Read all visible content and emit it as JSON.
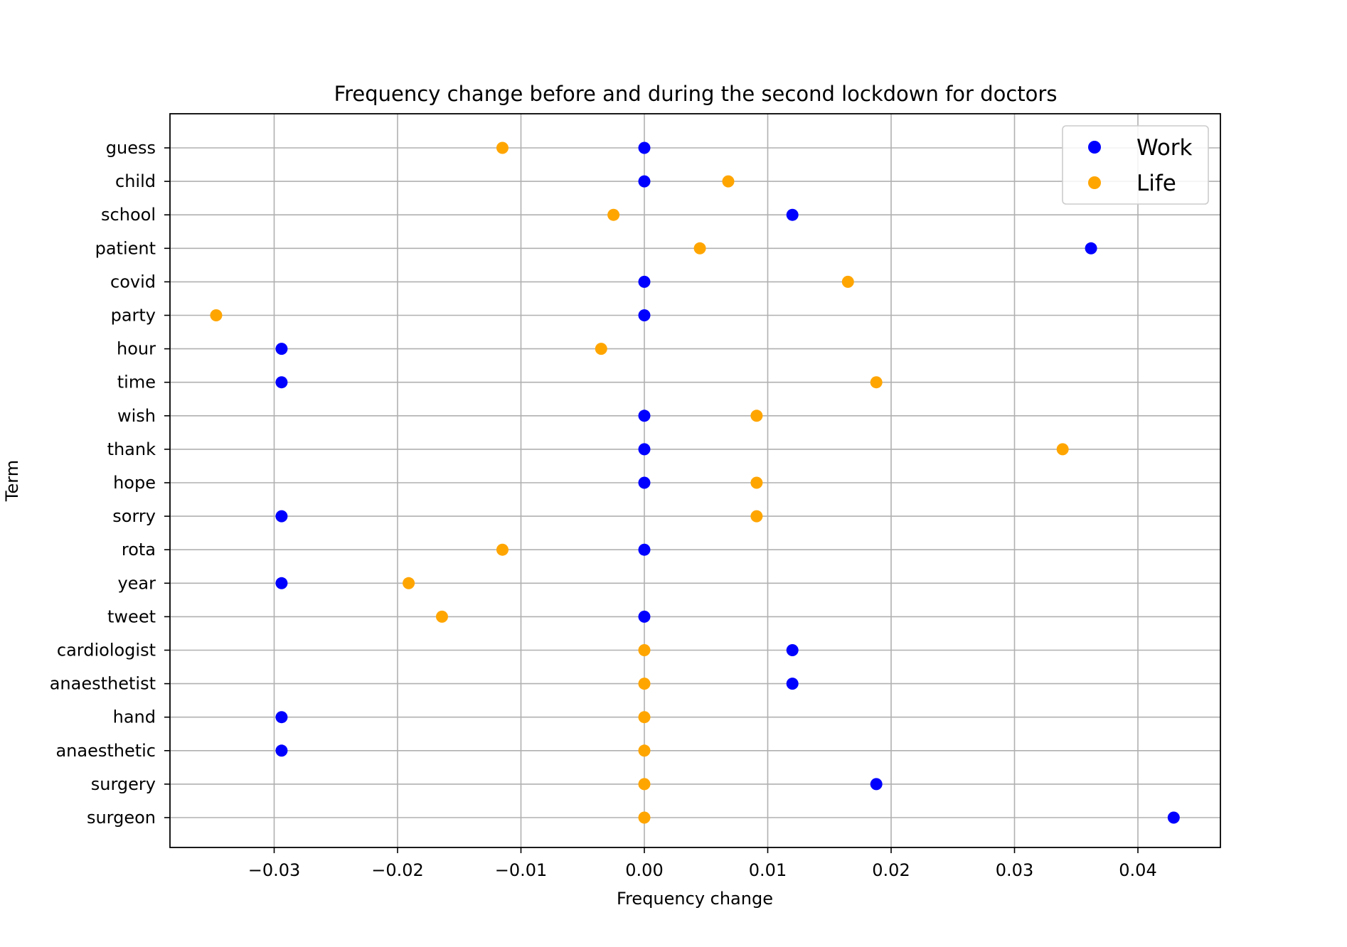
{
  "chart_data": {
    "type": "scatter",
    "title": "Frequency change before and during the second lockdown for doctors",
    "xlabel": "Frequency change",
    "ylabel": "Term",
    "xlim": [
      -0.0385,
      0.0468
    ],
    "xticks": [
      -0.03,
      -0.02,
      -0.01,
      0.0,
      0.01,
      0.02,
      0.03,
      0.04
    ],
    "xtick_labels": [
      "−0.03",
      "−0.02",
      "−0.01",
      "0.00",
      "0.01",
      "0.02",
      "0.03",
      "0.04"
    ],
    "grid": true,
    "legend_position": "top-right",
    "categories": [
      "guess",
      "child",
      "school",
      "patient",
      "covid",
      "party",
      "hour",
      "time",
      "wish",
      "thank",
      "hope",
      "sorry",
      "rota",
      "year",
      "tweet",
      "cardiologist",
      "anaesthetist",
      "hand",
      "anaesthetic",
      "surgery",
      "surgeon"
    ],
    "series": [
      {
        "name": "Work",
        "color": "#0000ff",
        "values": [
          0.0,
          0.0,
          0.012,
          0.0362,
          0.0,
          0.0,
          -0.0294,
          -0.0294,
          0.0,
          0.0,
          0.0,
          -0.0294,
          0.0,
          -0.0294,
          0.0,
          0.012,
          0.012,
          -0.0294,
          -0.0294,
          0.0188,
          0.0429
        ]
      },
      {
        "name": "Life",
        "color": "#ffa500",
        "values": [
          -0.0115,
          0.0068,
          -0.0025,
          0.0045,
          0.0165,
          -0.0347,
          -0.0035,
          0.0188,
          0.0091,
          0.0339,
          0.0091,
          0.0091,
          -0.0115,
          -0.0191,
          -0.0164,
          0.0,
          0.0,
          0.0,
          0.0,
          0.0,
          0.0
        ]
      }
    ]
  }
}
